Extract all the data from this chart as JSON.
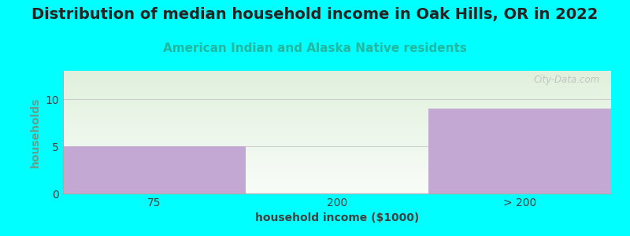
{
  "title": "Distribution of median household income in Oak Hills, OR in 2022",
  "subtitle": "American Indian and Alaska Native residents",
  "xlabel": "household income ($1000)",
  "ylabel": "households",
  "categories": [
    "75",
    "200",
    "> 200"
  ],
  "values": [
    5,
    0,
    9
  ],
  "bar_color": "#C4A8D4",
  "background_outer": "#00FFFF",
  "background_inner_top": "#E0F0DC",
  "background_inner_bottom": "#F8FCF8",
  "ylim": [
    0,
    13
  ],
  "yticks": [
    0,
    5,
    10
  ],
  "title_fontsize": 14,
  "subtitle_fontsize": 11,
  "label_fontsize": 10,
  "watermark": "City-Data.com",
  "subtitle_color": "#20B8A0",
  "ylabel_color": "#60A090",
  "xlabel_color": "#404040",
  "tick_color": "#404040",
  "grid_color": "#CCCCCC"
}
